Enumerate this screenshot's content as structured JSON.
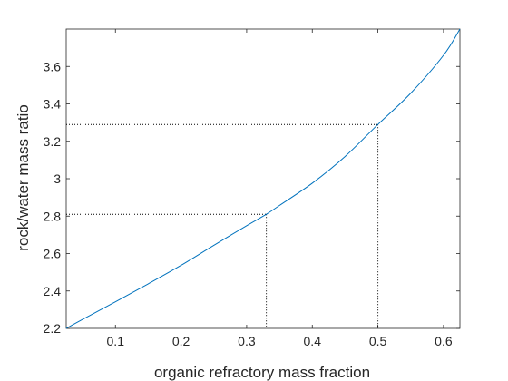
{
  "chart_data": {
    "type": "line",
    "title": "",
    "xlabel": "organic refractory mass fraction",
    "ylabel": "rock/water mass ratio",
    "xlim": [
      0.025,
      0.625
    ],
    "ylim": [
      2.2,
      3.8
    ],
    "xticks": [
      0.1,
      0.2,
      0.3,
      0.4,
      0.5,
      0.6
    ],
    "yticks": [
      2.2,
      2.4,
      2.6,
      2.8,
      3.0,
      3.2,
      3.4,
      3.6
    ],
    "xtick_labels": [
      "0.1",
      "0.2",
      "0.3",
      "0.4",
      "0.5",
      "0.6"
    ],
    "ytick_labels": [
      "2.2",
      "2.4",
      "2.6",
      "2.8",
      "3",
      "3.2",
      "3.4",
      "3.6"
    ],
    "grid": false,
    "series": [
      {
        "name": "",
        "color": "#0072BD",
        "x": [
          0.025,
          0.05,
          0.1,
          0.15,
          0.2,
          0.25,
          0.3,
          0.33,
          0.35,
          0.4,
          0.45,
          0.5,
          0.55,
          0.6,
          0.625
        ],
        "y": [
          2.2,
          2.248,
          2.342,
          2.438,
          2.537,
          2.644,
          2.749,
          2.81,
          2.857,
          2.976,
          3.119,
          3.29,
          3.457,
          3.66,
          3.8
        ]
      }
    ],
    "reference_lines": [
      {
        "x": 0.33,
        "y": 2.81,
        "color": "#000000",
        "style": "dotted"
      },
      {
        "x": 0.5,
        "y": 3.29,
        "color": "#000000",
        "style": "dotted"
      }
    ]
  }
}
